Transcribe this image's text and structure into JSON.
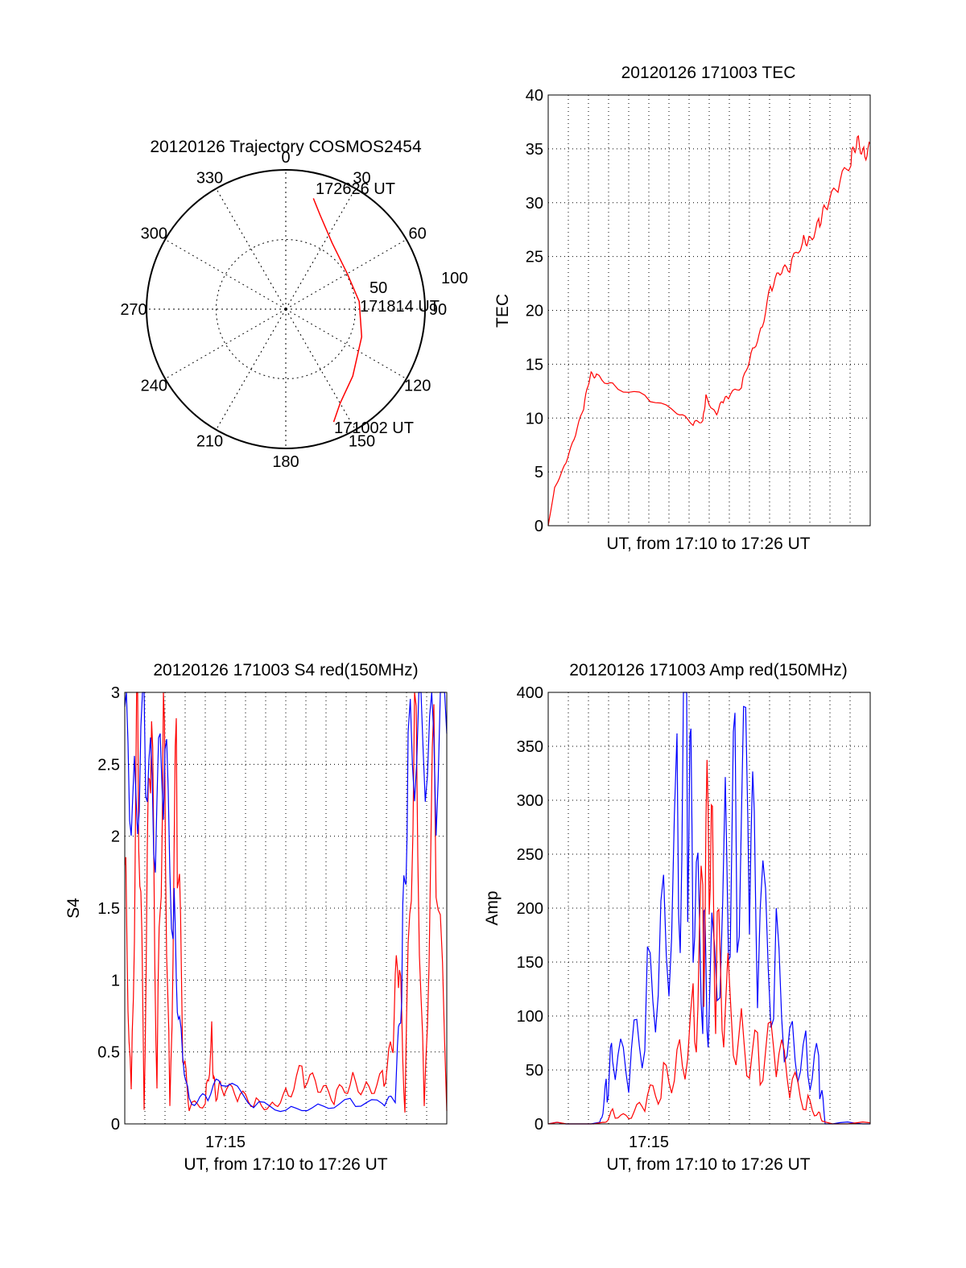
{
  "chart_data": [
    {
      "type": "polar",
      "title": "20120126 Trajectory COSMOS2454",
      "angle_ticks": [
        "0",
        "30",
        "60",
        "90",
        "120",
        "150",
        "180",
        "210",
        "240",
        "270",
        "300",
        "330"
      ],
      "radial_ticks": [
        "50",
        "100"
      ],
      "series": [
        {
          "color": "#ff0000",
          "points": [
            {
              "azimuth": 14,
              "elevation_label_r": 82
            },
            {
              "azimuth": 20,
              "elevation_label_r": 72
            },
            {
              "azimuth": 35,
              "elevation_label_r": 58
            },
            {
              "azimuth": 60,
              "elevation_label_r": 51
            },
            {
              "azimuth": 84,
              "elevation_label_r": 53
            },
            {
              "azimuth": 110,
              "elevation_label_r": 58
            },
            {
              "azimuth": 135,
              "elevation_label_r": 68
            },
            {
              "azimuth": 150,
              "elevation_label_r": 78
            },
            {
              "azimuth": 157,
              "elevation_label_r": 88
            }
          ]
        }
      ],
      "annotations": [
        "172626 UT",
        "171814 UT",
        "171002 UT"
      ]
    },
    {
      "type": "line",
      "title": "20120126 171003 TEC",
      "xlabel": "UT, from 17:10 to 17:26 UT",
      "ylabel": "TEC",
      "ylim": [
        0,
        40
      ],
      "yticks": [
        "0",
        "5",
        "10",
        "15",
        "20",
        "25",
        "30",
        "35",
        "40"
      ],
      "grid": true,
      "series": [
        {
          "color": "#ff0000",
          "x": [
            0,
            0.02,
            0.05,
            0.08,
            0.11,
            0.13,
            0.15,
            0.2,
            0.3,
            0.4,
            0.45,
            0.48,
            0.49,
            0.52,
            0.54,
            0.56,
            0.6,
            0.63,
            0.66,
            0.69,
            0.72,
            0.75,
            0.79,
            0.81,
            0.84,
            0.86,
            0.9,
            0.94,
            0.96,
            0.98,
            1.0
          ],
          "y": [
            0,
            3.5,
            5.5,
            8,
            11,
            14,
            14,
            13,
            12,
            10.5,
            9.5,
            9.8,
            12,
            10.3,
            11.5,
            12,
            13,
            16,
            18,
            22,
            23.5,
            24,
            26.5,
            26.5,
            28,
            29.5,
            31.5,
            34,
            36,
            34.5,
            35
          ]
        }
      ]
    },
    {
      "type": "line",
      "title": "20120126 171003 S4 red(150MHz)",
      "xlabel": "UT, from 17:10 to 17:26 UT",
      "ylabel": "S4",
      "ylim": [
        0,
        3
      ],
      "yticks": [
        "0",
        "0.5",
        "1",
        "1.5",
        "2",
        "2.5",
        "3"
      ],
      "xticks": [
        "17:15"
      ],
      "grid": true,
      "series": [
        {
          "color": "#ff0000",
          "x": [
            0,
            0.02,
            0.04,
            0.06,
            0.08,
            0.1,
            0.12,
            0.14,
            0.16,
            0.18,
            0.2,
            0.25,
            0.27,
            0.28,
            0.3,
            0.35,
            0.4,
            0.45,
            0.5,
            0.55,
            0.6,
            0.65,
            0.7,
            0.75,
            0.8,
            0.83,
            0.85,
            0.87,
            0.9,
            0.93,
            0.96,
            1.0
          ],
          "y": [
            1.8,
            0.2,
            3,
            0.1,
            3,
            0.3,
            3,
            0.1,
            2.5,
            0.5,
            0.12,
            0.15,
            0.6,
            0.2,
            0.25,
            0.2,
            0.15,
            0.12,
            0.2,
            0.35,
            0.25,
            0.18,
            0.3,
            0.25,
            0.3,
            0.5,
            1.2,
            0.1,
            3,
            0.1,
            2.5,
            0.1
          ]
        },
        {
          "color": "#0000ff",
          "x": [
            0,
            0.03,
            0.06,
            0.09,
            0.12,
            0.15,
            0.17,
            0.2,
            0.25,
            0.3,
            0.4,
            0.5,
            0.6,
            0.7,
            0.8,
            0.84,
            0.86,
            0.88,
            0.92,
            0.96,
            1.0
          ],
          "y": [
            2.9,
            2.2,
            3,
            1.9,
            2.6,
            1.5,
            0.7,
            0.15,
            0.18,
            0.3,
            0.14,
            0.1,
            0.12,
            0.15,
            0.14,
            0.18,
            1.0,
            2.6,
            3,
            2.4,
            3
          ]
        }
      ]
    },
    {
      "type": "line",
      "title": "20120126 171003 Amp red(150MHz)",
      "xlabel": "UT, from 17:10 to 17:26 UT",
      "ylabel": "Amp",
      "ylim": [
        0,
        400
      ],
      "yticks": [
        "0",
        "50",
        "100",
        "150",
        "200",
        "250",
        "300",
        "350",
        "400"
      ],
      "xticks": [
        "17:15"
      ],
      "grid": true,
      "series": [
        {
          "color": "#0000ff",
          "x": [
            0,
            0.16,
            0.18,
            0.2,
            0.25,
            0.3,
            0.35,
            0.4,
            0.43,
            0.45,
            0.48,
            0.5,
            0.55,
            0.58,
            0.62,
            0.65,
            0.7,
            0.75,
            0.8,
            0.84,
            0.86,
            1.0
          ],
          "y": [
            0,
            0,
            30,
            60,
            50,
            100,
            180,
            250,
            360,
            200,
            150,
            120,
            240,
            270,
            280,
            180,
            150,
            80,
            60,
            50,
            0,
            0
          ]
        },
        {
          "color": "#ff0000",
          "x": [
            0,
            0.17,
            0.2,
            0.25,
            0.3,
            0.35,
            0.4,
            0.45,
            0.48,
            0.5,
            0.52,
            0.55,
            0.6,
            0.65,
            0.7,
            0.75,
            0.8,
            0.84,
            0.86,
            1.0
          ],
          "y": [
            0,
            0,
            10,
            5,
            20,
            35,
            60,
            90,
            180,
            260,
            150,
            120,
            80,
            60,
            70,
            40,
            20,
            10,
            0,
            0
          ]
        }
      ]
    }
  ]
}
